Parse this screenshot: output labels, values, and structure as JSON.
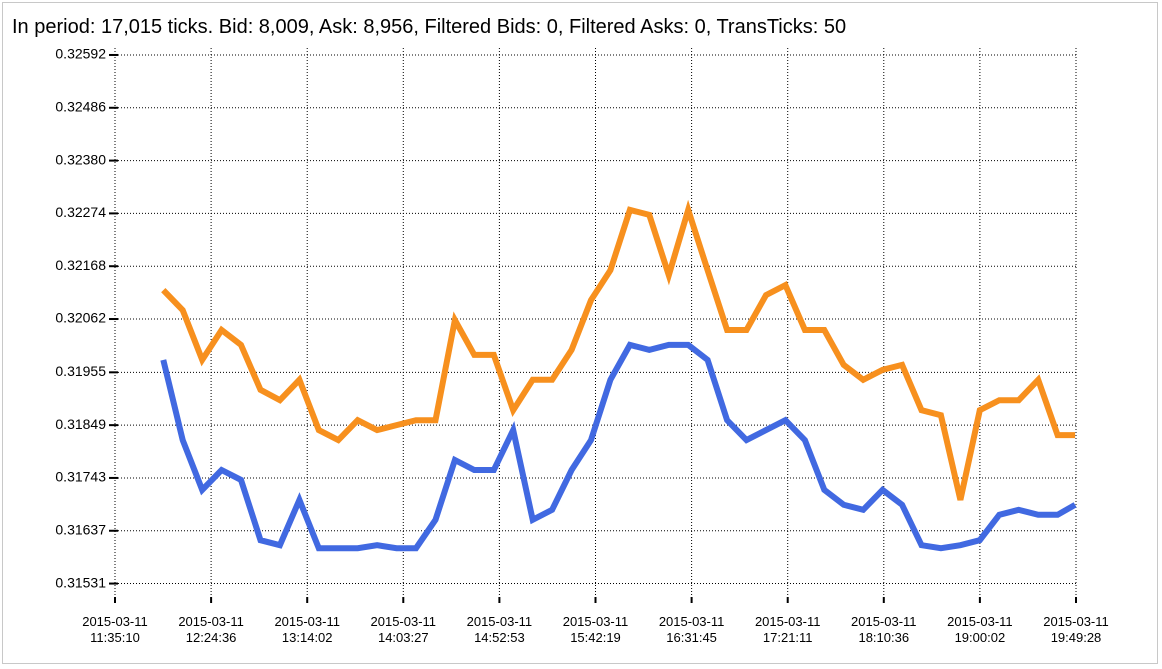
{
  "chart_data": {
    "type": "line",
    "title": "In period: 17,015 ticks. Bid: 8,009, Ask: 8,956, Filtered Bids: 0, Filtered Asks: 0, TransTicks: 50",
    "grid": true,
    "xlim": [
      "2015-03-11 11:35:10",
      "2015-03-11 19:49:28"
    ],
    "xticks": [
      "2015-03-11 11:35:10",
      "2015-03-11 12:24:36",
      "2015-03-11 13:14:02",
      "2015-03-11 14:03:27",
      "2015-03-11 14:52:53",
      "2015-03-11 15:42:19",
      "2015-03-11 16:31:45",
      "2015-03-11 17:21:11",
      "2015-03-11 18:10:36",
      "2015-03-11 19:00:02",
      "2015-03-11 19:49:28"
    ],
    "ylim": [
      0.31498,
      0.32606
    ],
    "yticks": [
      0.31531,
      0.31637,
      0.31743,
      0.31849,
      0.31955,
      0.32062,
      0.32168,
      0.32274,
      {
        "value": 0.3238,
        "label": "0.32380"
      },
      0.32486,
      0.32592
    ],
    "x": [
      "2015-03-11 12:00",
      "2015-03-11 12:10",
      "2015-03-11 12:20",
      "2015-03-11 12:30",
      "2015-03-11 12:40",
      "2015-03-11 12:50",
      "2015-03-11 13:00",
      "2015-03-11 13:10",
      "2015-03-11 13:20",
      "2015-03-11 13:30",
      "2015-03-11 13:40",
      "2015-03-11 13:50",
      "2015-03-11 14:00",
      "2015-03-11 14:10",
      "2015-03-11 14:20",
      "2015-03-11 14:30",
      "2015-03-11 14:40",
      "2015-03-11 14:50",
      "2015-03-11 15:00",
      "2015-03-11 15:10",
      "2015-03-11 15:20",
      "2015-03-11 15:30",
      "2015-03-11 15:40",
      "2015-03-11 15:50",
      "2015-03-11 16:00",
      "2015-03-11 16:10",
      "2015-03-11 16:20",
      "2015-03-11 16:30",
      "2015-03-11 16:40",
      "2015-03-11 16:50",
      "2015-03-11 17:00",
      "2015-03-11 17:10",
      "2015-03-11 17:20",
      "2015-03-11 17:30",
      "2015-03-11 17:40",
      "2015-03-11 17:50",
      "2015-03-11 18:00",
      "2015-03-11 18:10",
      "2015-03-11 18:20",
      "2015-03-11 18:30",
      "2015-03-11 18:40",
      "2015-03-11 18:50",
      "2015-03-11 19:00",
      "2015-03-11 19:10",
      "2015-03-11 19:20",
      "2015-03-11 19:30",
      "2015-03-11 19:40",
      "2015-03-11 19:49"
    ],
    "series": [
      {
        "name": "Ask",
        "color": "#f7901e",
        "values": [
          0.3212,
          0.3208,
          0.3198,
          0.3204,
          0.3201,
          0.3192,
          0.31899,
          0.3194,
          0.31839,
          0.31819,
          0.31859,
          0.31839,
          0.31849,
          0.31859,
          0.31859,
          0.3206,
          0.3199,
          0.3199,
          0.31879,
          0.3194,
          0.3194,
          0.32,
          0.321,
          0.3216,
          0.32281,
          0.32271,
          0.3215,
          0.32281,
          0.3216,
          0.3204,
          0.3204,
          0.3211,
          0.3213,
          0.3204,
          0.3204,
          0.3197,
          0.3194,
          0.3196,
          0.3197,
          0.31879,
          0.31869,
          0.31699,
          0.31879,
          0.31899,
          0.31899,
          0.3194,
          0.31829,
          0.31829
        ]
      },
      {
        "name": "Bid",
        "color": "#4169e1",
        "values": [
          0.3198,
          0.31819,
          0.31719,
          0.31759,
          0.31739,
          0.31618,
          0.31608,
          0.31699,
          0.31602,
          0.31602,
          0.31602,
          0.31608,
          0.31602,
          0.31602,
          0.31659,
          0.31779,
          0.31759,
          0.31759,
          0.31839,
          0.31659,
          0.31679,
          0.31759,
          0.31819,
          0.3194,
          0.3201,
          0.32,
          0.3201,
          0.3201,
          0.3198,
          0.31859,
          0.31819,
          0.31839,
          0.31859,
          0.31819,
          0.31719,
          0.31689,
          0.31679,
          0.31719,
          0.31689,
          0.31608,
          0.31602,
          0.31608,
          0.31618,
          0.31669,
          0.31679,
          0.31669,
          0.31669,
          0.31689
        ]
      }
    ]
  }
}
